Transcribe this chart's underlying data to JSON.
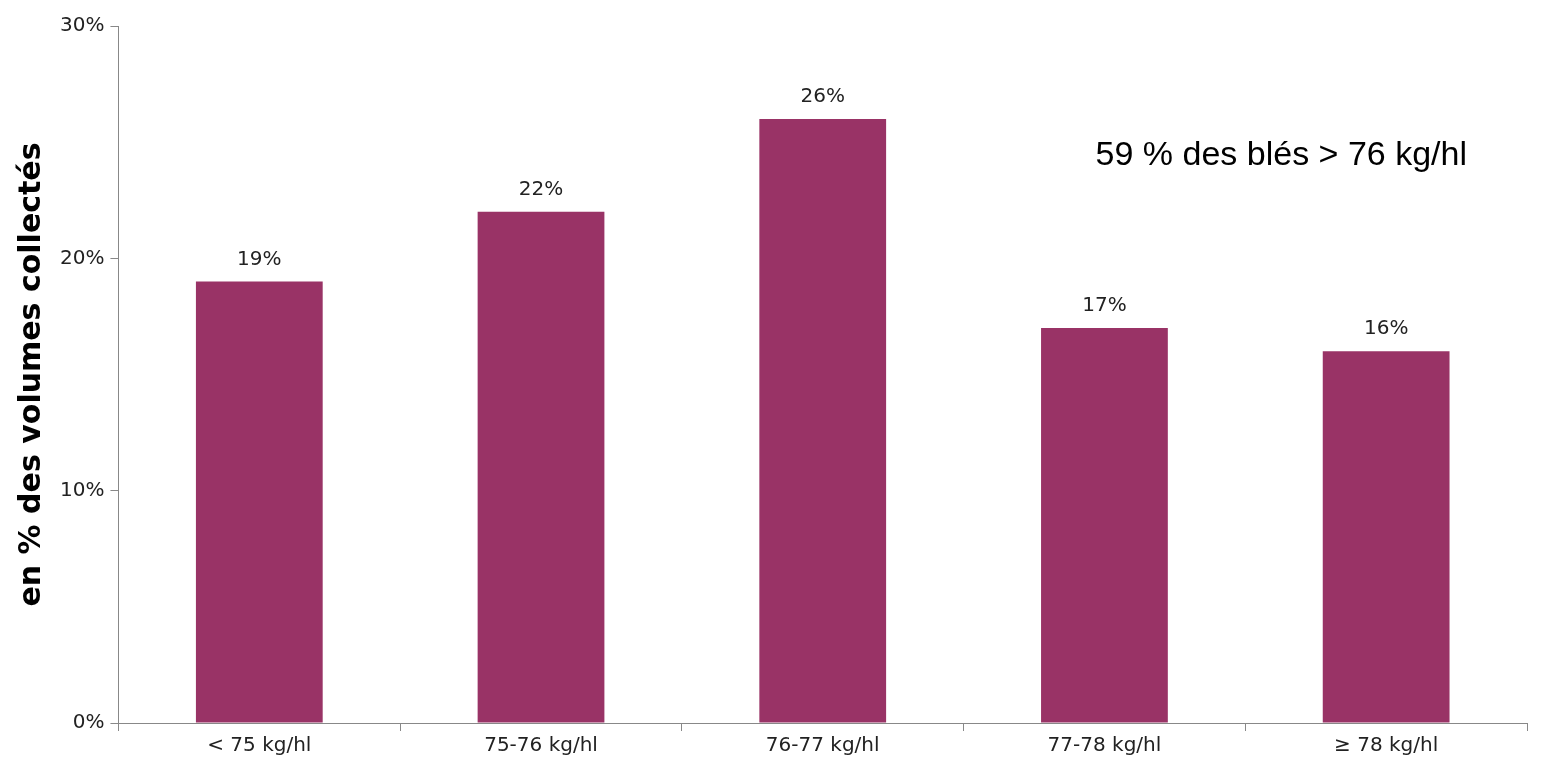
{
  "chart_data": {
    "type": "bar",
    "ylabel": "en % des volumes collectés",
    "categories": [
      "< 75 kg/hl",
      "75-76 kg/hl",
      "76-77 kg/hl",
      "77-78 kg/hl",
      "≥ 78 kg/hl"
    ],
    "values": [
      19,
      22,
      26,
      17,
      16
    ],
    "value_labels": [
      "19%",
      "22%",
      "26%",
      "17%",
      "16%"
    ],
    "color": "#993366",
    "ylim": [
      0,
      30
    ],
    "yticks": [
      {
        "value": 0,
        "label": "0%"
      },
      {
        "value": 10,
        "label": "10%"
      },
      {
        "value": 20,
        "label": "20%"
      },
      {
        "value": 30,
        "label": "30%"
      }
    ],
    "grid": false,
    "legend": false,
    "annotations": [
      "59 % des blés > 76 kg/hl"
    ]
  }
}
